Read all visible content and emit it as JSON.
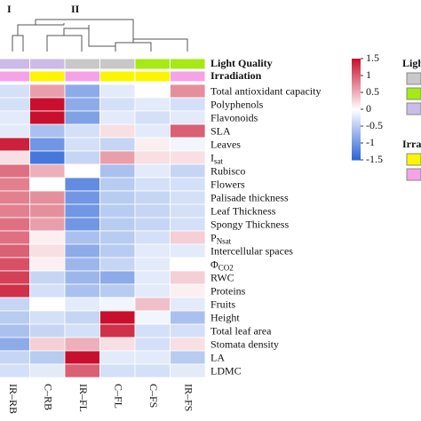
{
  "chart_data": {
    "type": "heatmap",
    "columns": [
      "IR–RB",
      "C–RB",
      "IR–FL",
      "C–FL",
      "C–FS",
      "IR–FS"
    ],
    "clusters": [
      "I",
      "II"
    ],
    "annotations": [
      {
        "name": "Light Quality",
        "colors": [
          "#cbbbe9",
          "#cbbbe9",
          "#c8c8c8",
          "#c8c8c8",
          "#a5ea14",
          "#a5ea14"
        ]
      },
      {
        "name": "Irradiation",
        "colors": [
          "#f5a3e6",
          "#fbf500",
          "#f5a3e6",
          "#fbf500",
          "#fbf500",
          "#f5a3e6"
        ]
      }
    ],
    "legend_swatches": [
      {
        "title": "Light Quality",
        "colors": [
          "#c8c8c8",
          "#a5ea14",
          "#cbbbe9"
        ]
      },
      {
        "title": "Irradiation",
        "colors": [
          "#fbf500",
          "#f5a3e6"
        ]
      }
    ],
    "rows": [
      "Total antioxidant capacity",
      "Polyphenols",
      "Flavonoids",
      "SLA",
      "Leaves",
      {
        "text": "I",
        "sub": "sat"
      },
      "Rubisco",
      "Flowers",
      "Palisade thickness",
      "Leaf Thickness",
      "Spongy Thickness",
      {
        "text": "P",
        "sub": "Nsat"
      },
      "Intercellular spaces",
      {
        "text": "Φ",
        "sub": "CO2"
      },
      "RWC",
      "Proteins",
      "Fruits",
      "Height",
      "Total leaf area",
      "Stomata density",
      "LA",
      "LDMC"
    ],
    "values": [
      [
        -0.3,
        0.6,
        -0.8,
        -0.2,
        0,
        0.7
      ],
      [
        -0.3,
        1.5,
        -0.8,
        -0.3,
        -0.2,
        -0.3
      ],
      [
        -0.2,
        1.5,
        -0.9,
        -0.2,
        -0.3,
        -0.2
      ],
      [
        -0.2,
        -0.6,
        -0.3,
        0.2,
        -0.2,
        1.0
      ],
      [
        1.4,
        -1.0,
        -0.3,
        -0.4,
        0.1,
        -0.1
      ],
      [
        0.2,
        -1.3,
        -0.4,
        0.6,
        0.2,
        0.2
      ],
      [
        0.9,
        0.5,
        0,
        -0.6,
        -0.2,
        -0.4
      ],
      [
        0.8,
        0,
        -1.1,
        -0.5,
        -0.3,
        -0.3
      ],
      [
        0.8,
        0.7,
        -1.0,
        -0.5,
        -0.4,
        -0.3
      ],
      [
        0.8,
        0.7,
        -1.0,
        -0.5,
        -0.4,
        -0.3
      ],
      [
        0.9,
        0.6,
        -1.0,
        -0.5,
        -0.4,
        -0.3
      ],
      [
        0.9,
        0.1,
        -0.6,
        -0.5,
        -0.3,
        0.3
      ],
      [
        1.0,
        0.2,
        -0.8,
        -0.5,
        -0.2,
        -0.2
      ],
      [
        1.1,
        0.1,
        -0.7,
        -0.4,
        -0.2,
        0
      ],
      [
        1.2,
        -0.4,
        -0.7,
        -0.8,
        -0.2,
        0.3
      ],
      [
        1.3,
        -0.3,
        -0.6,
        -0.5,
        -0.2,
        0.1
      ],
      [
        -0.4,
        0,
        -0.2,
        -0.1,
        0.4,
        -0.2
      ],
      [
        -0.5,
        -0.3,
        -0.4,
        1.5,
        -0.1,
        -0.6
      ],
      [
        -0.6,
        -0.4,
        -0.3,
        1.3,
        -0.3,
        -0.3
      ],
      [
        -0.8,
        0.3,
        0.5,
        0.2,
        -0.3,
        0.2
      ],
      [
        -0.4,
        -0.5,
        1.5,
        -0.2,
        -0.2,
        -0.5
      ],
      [
        -0.3,
        -0.2,
        1.0,
        -0.3,
        -0.3,
        -0.2
      ]
    ],
    "colormap": [
      "#2a62d6",
      "#ffffff",
      "#c8102e"
    ],
    "zlim": [
      -1.5,
      1.5
    ],
    "zticks": [
      1.5,
      1,
      0.5,
      0,
      -0.5,
      -1,
      -1.5
    ]
  }
}
